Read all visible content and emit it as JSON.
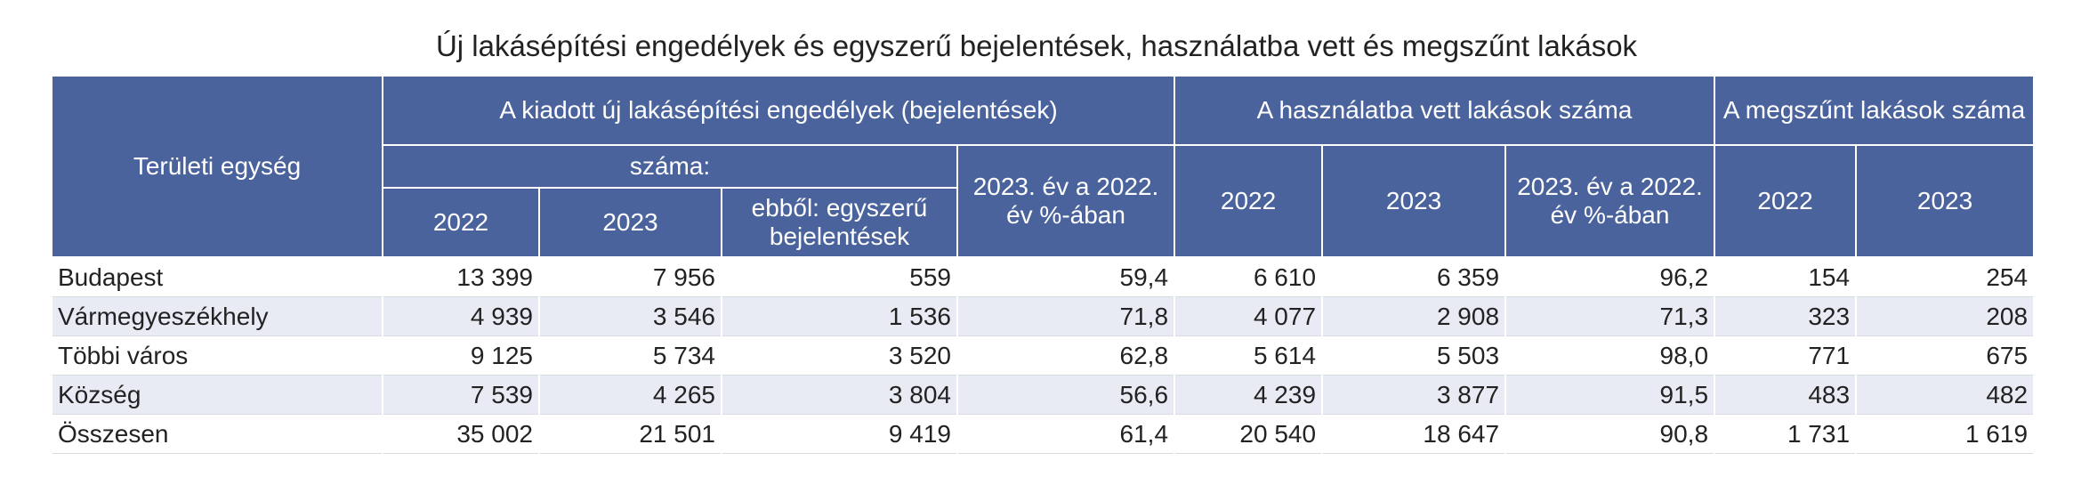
{
  "title": "Új lakásépítési engedélyek és egyszerű bejelentések, használatba vett és megszűnt lakások",
  "headers": {
    "region": "Területi egység",
    "permits_group": "A kiadott új lakásépítési engedélyek (bejelentések)",
    "completed_group": "A használatba vett lakások száma",
    "demolished_group": "A megszűnt lakások száma",
    "count_sub": "száma:",
    "permits_pct": "2023. év a 2022. év %-ában",
    "permits_2022": "2022",
    "permits_2023": "2023",
    "permits_simple": "ebből: egyszerű bejelentések",
    "completed_2022": "2022",
    "completed_2023": "2023",
    "completed_pct": "2023. év a 2022. év %-ában",
    "demolished_2022": "2022",
    "demolished_2023": "2023"
  },
  "rows": [
    {
      "label": "Budapest",
      "cells": [
        "13 399",
        "7 956",
        "559",
        "59,4",
        "6 610",
        "6 359",
        "96,2",
        "154",
        "254"
      ]
    },
    {
      "label": "Vármegyeszékhely",
      "cells": [
        "4 939",
        "3 546",
        "1 536",
        "71,8",
        "4 077",
        "2 908",
        "71,3",
        "323",
        "208"
      ]
    },
    {
      "label": "Többi város",
      "cells": [
        "9 125",
        "5 734",
        "3 520",
        "62,8",
        "5 614",
        "5 503",
        "98,0",
        "771",
        "675"
      ]
    },
    {
      "label": "Község",
      "cells": [
        "7 539",
        "4 265",
        "3 804",
        "56,6",
        "4 239",
        "3 877",
        "91,5",
        "483",
        "482"
      ]
    },
    {
      "label": "Összesen",
      "cells": [
        "35 002",
        "21 501",
        "9 419",
        "61,4",
        "20 540",
        "18 647",
        "90,8",
        "1 731",
        "1 619"
      ]
    }
  ]
}
